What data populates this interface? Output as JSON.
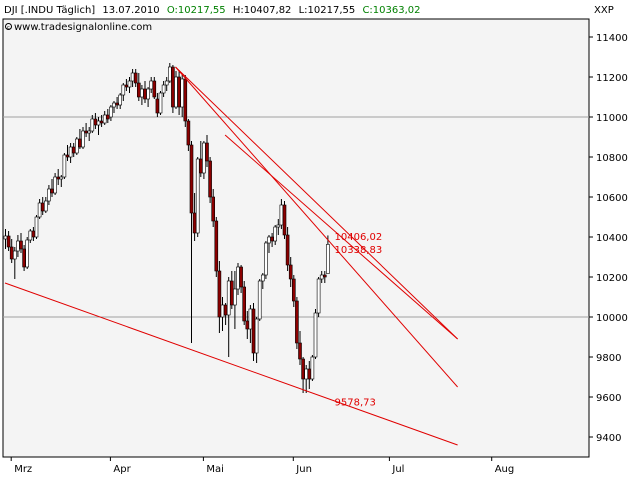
{
  "header": {
    "symbol": "DJI [.INDU  Täglich]",
    "date": "13.07.2010",
    "open": "O:10217,55",
    "high": "H:10407,82",
    "low": "L:10217,55",
    "close": "C:10363,02",
    "source": "www.tradesignalonline.com",
    "exchange": "XXP",
    "colors": {
      "symbol": "#000000",
      "open": "#008000",
      "high": "#000000",
      "low": "#000000",
      "close": "#008000"
    }
  },
  "chart_data": {
    "type": "candlestick",
    "ylim": [
      9320,
      11560
    ],
    "yticks": [
      9400,
      9600,
      9800,
      10000,
      10200,
      10400,
      10600,
      10800,
      11000,
      11200,
      11400
    ],
    "grid_lines": [
      10000,
      11000
    ],
    "x_range": [
      0,
      146
    ],
    "months": [
      {
        "label": "Mrz",
        "x": 2
      },
      {
        "label": "Apr",
        "x": 34
      },
      {
        "label": "Mai",
        "x": 64
      },
      {
        "label": "Jun",
        "x": 93
      },
      {
        "label": "Jul",
        "x": 124
      },
      {
        "label": "Aug",
        "x": 157
      }
    ],
    "candles_raw": "10390,10440,10340,10405;10405,10430,10330,10350;10350,10390,10270,10290;10290,10350,10190,10330;10330,10410,10300,10380;10380,10420,10320,10340;10340,10360,10230,10250;10250,10400,10240,10385;10385,10440,10370,10430;10430,10450,10380,10400;10400,10510,10390,10500;10500,10590,10490,10570;10570,10600,10510,10530;10530,10600,10520,10580;10580,10660,10560,10640;10640,10690,10600,10620;10620,10720,10610,10700;10700,10740,10660,10690;10690,10710,10650,10700;10700,10820,10690,10810;10810,10860,10780,10800;10800,10870,10770,10850;10850,10870,10800,10820;10820,10900,10810,10890;10890,10940,10840,10850;10850,10950,10840,10930;10930,10970,10900,10920;10920,10950,10880,10930;10930,11010,10920,10990;10990,11020,10940,10960;10960,11000,10910,10980;10980,11010,10950,10970;10970,11030,10960,11010;11010,11040,10970,10990;11000,11060,10980,11050;11050,11080,11020,11070;11070,11100,11040,11060;11060,11120,11040,11110;11110,11170,11080,11160;11160,11190,11130,11150;11150,11200,11120,11180;11180,11240,11150,11220;11220,11240,11150,11170;11170,11220,11080,11100;11100,11160,11060,11140;11140,11180,11070,11090;11090,11150,11050,11140;11140,11200,11120,11180;11180,11200,11090,11100;11090,11120,11000,11020;11020,11130,11010,11120;11120,11180,11100,11160;11160,11200,11130,11180;11180,11270,11170,11250;11250,11260,11020,11050;11050,11230,11040,11200;11200,11230,11010,11050;11050,11210,11000,11190;11190,11210,10950,10980;10980,10990,10830,10860;10860,10880,9870,10520;10520,10620,10380,10420;10420,10800,10400,10790;10790,10880,10700,10720;10720,10880,10690,10870;10870,10910,10750,10780;10780,10800,10570,10600;10600,10640,10450,10480;10480,10500,10200,10230;10230,10280,9920,10000;10000,10100,9930,10060;10060,10070,9960,10010;10010,10200,9800,10180;10180,10230,10040,10060;10060,10230,9940,10140;10140,10270,10110,10250;10250,10260,10120,10150;10150,10180,9960,9980;9980,10030,9890,9940;9940,10060,9870,10040;10040,10070,9780,9820;9820,10000,9770,9990;9990,10190,9980,10180;10180,10220,10140,10210;10210,10380,10190,10370;10370,10410,10320,10400;10400,10420,10350,10380;10380,10460,10360,10450;10450,10490,10410,10460;10460,10590,10440,10560;10560,10580,10390,10410;10410,10450,10230,10260;10260,10300,10150,10190;10190,10210,10050,10080;10080,10100,9840,9870;9870,9930,9760,9790;9790,9800,9620,9690;9690,9760,9620,9740;9740,9780,9640,9690;9690,9810,9680,9800;9800,10040,9790,10020;10020,10200,10000,10190;10190,10230,10170,10210;10210,10230,10170,10200;10217.55,10407.82,10217.55,10363.02",
    "lines": [
      {
        "from": [
          55,
          11250
        ],
        "to": [
          146,
          9650
        ]
      },
      {
        "from": [
          55,
          11250
        ],
        "to": [
          146,
          9890
        ]
      },
      {
        "from": [
          71,
          10910
        ],
        "to": [
          146,
          9890
        ]
      },
      {
        "from": [
          0,
          10170
        ],
        "to": [
          146,
          9360
        ]
      }
    ],
    "annotations": [
      {
        "text": "10406,02",
        "value": 10406.02,
        "x": 105
      },
      {
        "text": "10338,83",
        "value": 10338.83,
        "x": 105
      },
      {
        "text": "9578,73",
        "value": 9578.73,
        "x": 105
      }
    ],
    "colors": {
      "up": "#ffffff",
      "down": "#8b0000",
      "outline": "#000000",
      "trend": "#e00000",
      "grid": "#a0a0a0",
      "panel": "#f4f4f4"
    }
  }
}
